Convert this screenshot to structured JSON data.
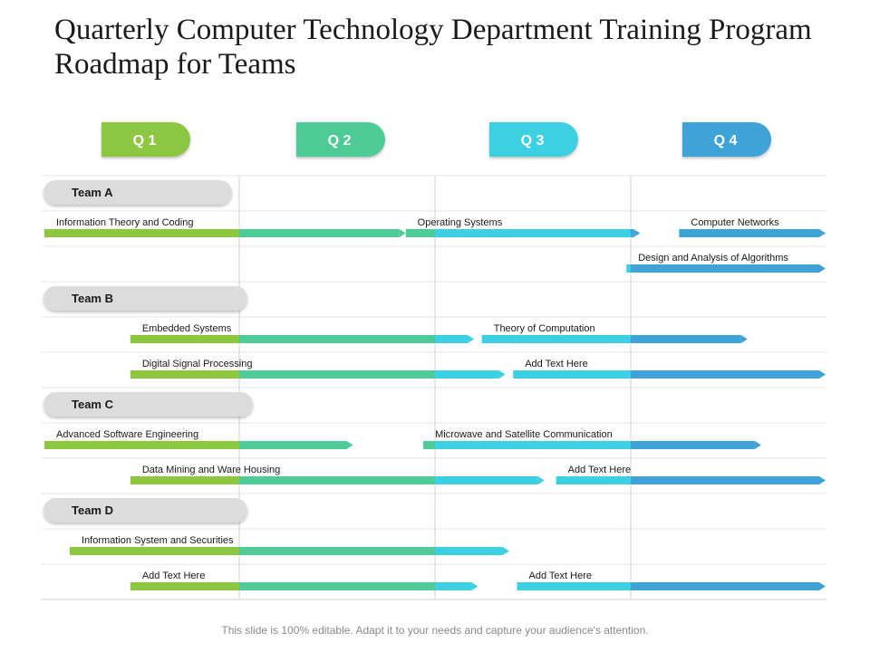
{
  "title": "Quarterly Computer Technology Department Training Program Roadmap for Teams",
  "footer": "This slide is 100% editable. Adapt it to your needs and capture your audience's attention.",
  "colors": {
    "q1": "#8dc63f",
    "q2": "#4ecb96",
    "q3": "#3dd0e3",
    "q4": "#3fa3d8",
    "team_pill": "#dcdcdc",
    "grid": "#e6e6e6"
  },
  "quarters": [
    {
      "label": "Q 1"
    },
    {
      "label": "Q 2"
    },
    {
      "label": "Q 3"
    },
    {
      "label": "Q 4"
    }
  ],
  "teams": [
    {
      "label": "Team  A",
      "rows": [
        {
          "bars": [
            {
              "label": "Information Theory and Coding",
              "start": 0.0,
              "end": 1.85
            },
            {
              "label": "Operating Systems",
              "start": 1.85,
              "end": 3.05
            },
            {
              "label": "Computer Networks",
              "start": 3.25,
              "end": 4.0
            }
          ]
        },
        {
          "bars": [
            {
              "label": "Design and Analysis of Algorithms",
              "start": 2.98,
              "end": 4.0
            }
          ]
        }
      ]
    },
    {
      "label": "Team  B",
      "rows": [
        {
          "bars": [
            {
              "label": "Embedded Systems",
              "start": 0.44,
              "end": 2.2
            },
            {
              "label": "Theory of Computation",
              "start": 2.24,
              "end": 3.6
            }
          ]
        },
        {
          "bars": [
            {
              "label": "Digital Signal Processing",
              "start": 0.44,
              "end": 2.36
            },
            {
              "label": "Add Text Here",
              "start": 2.4,
              "end": 4.0
            }
          ]
        }
      ]
    },
    {
      "label": "Team  C",
      "rows": [
        {
          "bars": [
            {
              "label": "Advanced Software Engineering",
              "start": 0.0,
              "end": 1.58
            },
            {
              "label": "Microwave and Satellite Communication",
              "start": 1.94,
              "end": 3.67
            }
          ]
        },
        {
          "bars": [
            {
              "label": "Data Mining and Ware Housing",
              "start": 0.44,
              "end": 2.56
            },
            {
              "label": "Add Text Here",
              "start": 2.62,
              "end": 4.0
            }
          ]
        }
      ]
    },
    {
      "label": "Team  D",
      "rows": [
        {
          "bars": [
            {
              "label": "Information System and Securities",
              "start": 0.13,
              "end": 2.38
            }
          ]
        },
        {
          "bars": [
            {
              "label": "Add Text Here",
              "start": 0.44,
              "end": 2.22
            },
            {
              "label": "Add Text Here",
              "start": 2.42,
              "end": 4.0
            }
          ]
        }
      ]
    }
  ]
}
